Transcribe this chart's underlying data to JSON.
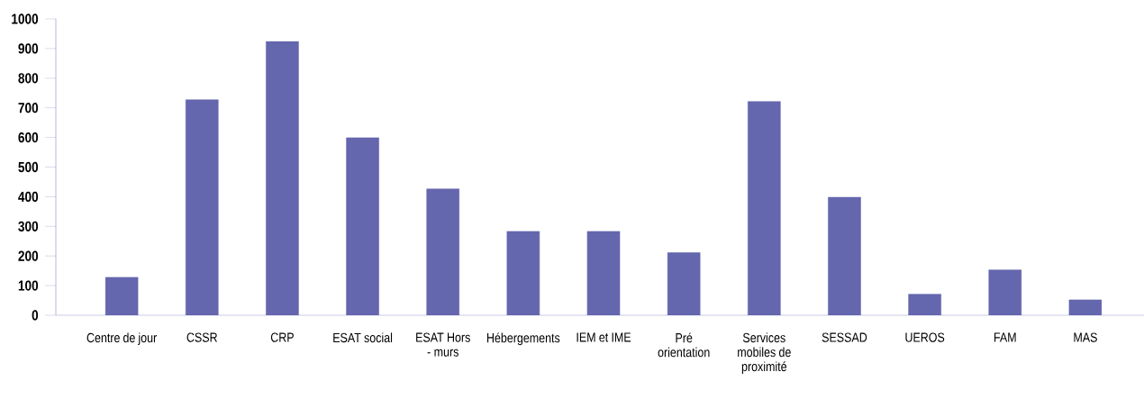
{
  "chart_data": {
    "type": "bar",
    "categories": [
      "Centre de jour",
      "CSSR",
      "CRP",
      "ESAT social",
      "ESAT Hors - murs",
      "Hébergements",
      "IEM et IME",
      "Pré orientation",
      "Services mobiles de proximité",
      "SESSAD",
      "UEROS",
      "FAM",
      "MAS"
    ],
    "values": [
      128,
      727,
      924,
      599,
      426,
      283,
      283,
      211,
      721,
      398,
      71,
      153,
      52
    ],
    "color": "#6466ae",
    "ylim": [
      0,
      1000
    ],
    "yticks": [
      0,
      100,
      200,
      300,
      400,
      500,
      600,
      700,
      800,
      900,
      1000
    ]
  }
}
